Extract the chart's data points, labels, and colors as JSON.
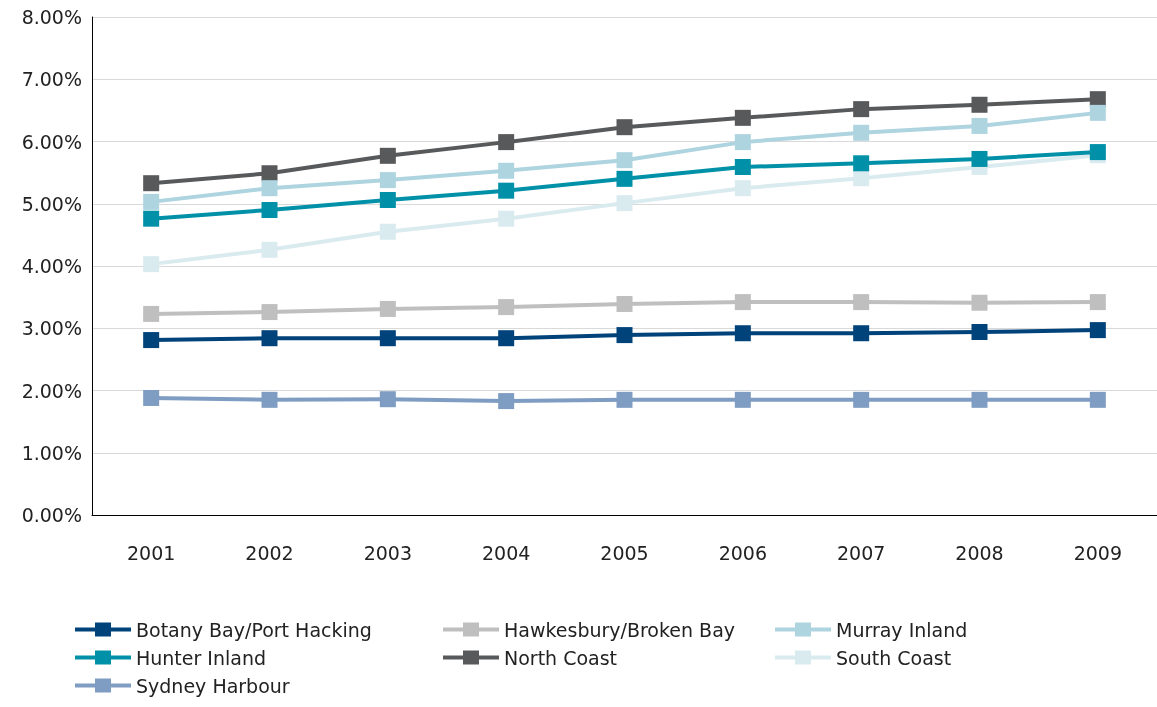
{
  "chart_data": {
    "type": "line",
    "categories": [
      "2001",
      "2002",
      "2003",
      "2004",
      "2005",
      "2006",
      "2007",
      "2008",
      "2009"
    ],
    "ylim": [
      0,
      8
    ],
    "yticks": [
      {
        "value": 0,
        "label": "0.00%"
      },
      {
        "value": 1,
        "label": "1.00%"
      },
      {
        "value": 2,
        "label": "2.00%"
      },
      {
        "value": 3,
        "label": "3.00%"
      },
      {
        "value": 4,
        "label": "4.00%"
      },
      {
        "value": 5,
        "label": "5.00%"
      },
      {
        "value": 6,
        "label": "6.00%"
      },
      {
        "value": 7,
        "label": "7.00%"
      },
      {
        "value": 8,
        "label": "8.00%"
      }
    ],
    "grid": "y",
    "legend": "bottom",
    "marker": "square",
    "line_style": "solid",
    "series": [
      {
        "name": "Botany Bay/Port Hacking",
        "color": "#00427a",
        "values": [
          2.81,
          2.84,
          2.84,
          2.84,
          2.89,
          2.92,
          2.92,
          2.94,
          2.97
        ]
      },
      {
        "name": "Hawkesbury/Broken Bay",
        "color": "#bfbfbf",
        "values": [
          3.23,
          3.26,
          3.31,
          3.34,
          3.39,
          3.42,
          3.42,
          3.41,
          3.42
        ]
      },
      {
        "name": "Murray Inland",
        "color": "#aed4e0",
        "values": [
          5.03,
          5.25,
          5.38,
          5.53,
          5.7,
          5.99,
          6.14,
          6.25,
          6.46
        ]
      },
      {
        "name": "Hunter Inland",
        "color": "#0090a8",
        "values": [
          4.76,
          4.9,
          5.06,
          5.21,
          5.4,
          5.59,
          5.65,
          5.72,
          5.83
        ]
      },
      {
        "name": "North Coast",
        "color": "#58595b",
        "values": [
          5.33,
          5.49,
          5.77,
          5.99,
          6.23,
          6.38,
          6.52,
          6.59,
          6.68
        ]
      },
      {
        "name": "South Coast",
        "color": "#daebf0",
        "values": [
          4.03,
          4.26,
          4.55,
          4.76,
          5.01,
          5.25,
          5.41,
          5.59,
          5.78
        ]
      },
      {
        "name": "Sydney Harbour",
        "color": "#7f9dc2",
        "values": [
          1.88,
          1.85,
          1.86,
          1.83,
          1.85,
          1.85,
          1.85,
          1.85,
          1.85
        ]
      }
    ]
  }
}
